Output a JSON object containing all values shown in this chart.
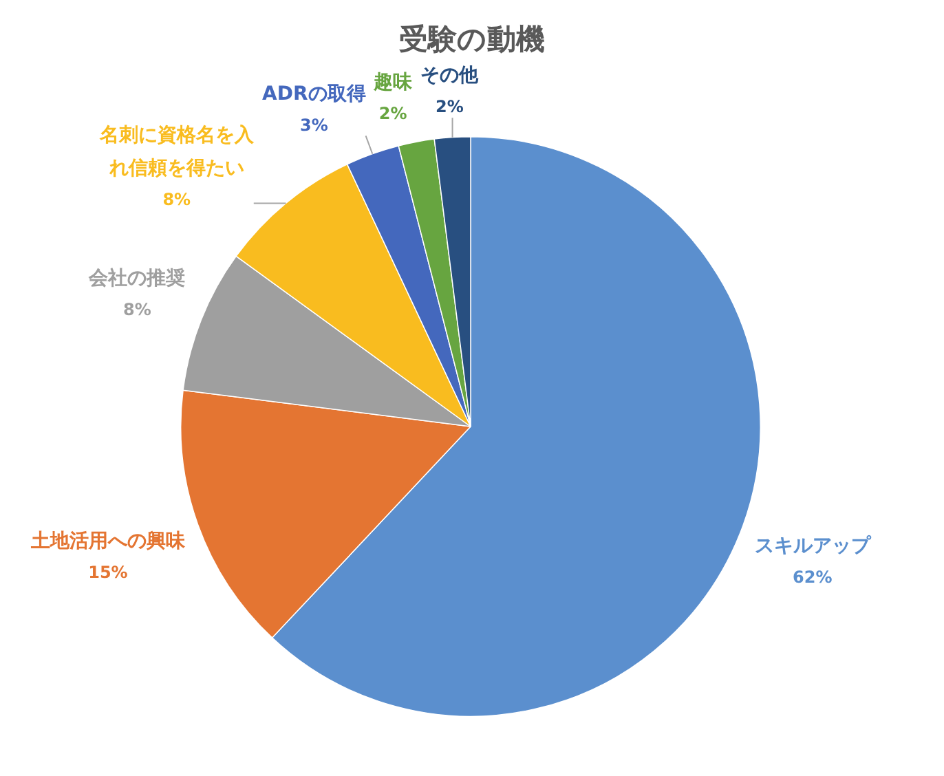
{
  "chart_data": {
    "type": "pie",
    "title": "受験の動機",
    "categories": [
      "スキルアップ",
      "土地活用への興味",
      "会社の推奨",
      "名刺に資格名を入れ信頼を得たい",
      "ADRの取得",
      "趣味",
      "その他"
    ],
    "values": [
      62,
      15,
      8,
      8,
      3,
      2,
      2
    ],
    "colors": [
      "#5b8fce",
      "#e47532",
      "#9f9f9f",
      "#f9bc1f",
      "#4468bd",
      "#67a540",
      "#284f80"
    ],
    "value_labels": [
      "62%",
      "15%",
      "8%",
      "8%",
      "3%",
      "2%",
      "2%"
    ],
    "legend": false
  }
}
